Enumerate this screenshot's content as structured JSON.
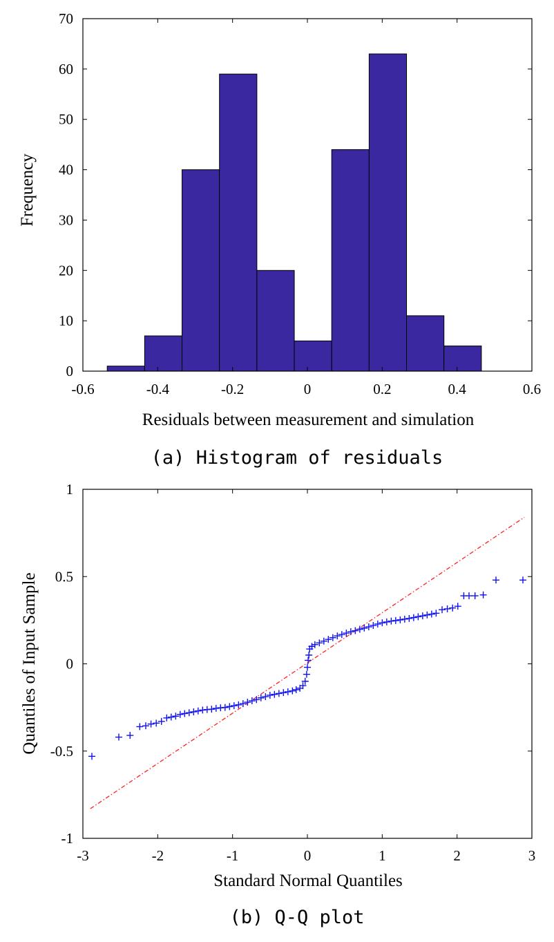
{
  "chart_data": [
    {
      "type": "bar",
      "caption": "(a) Histogram of residuals",
      "xlabel": "Residuals between measurement and simulation",
      "ylabel": "Frequency",
      "xlim": [
        -0.6,
        0.6
      ],
      "ylim": [
        0,
        70
      ],
      "xticks": [
        -0.6,
        -0.4,
        -0.2,
        0,
        0.2,
        0.4,
        0.6
      ],
      "yticks": [
        0,
        10,
        20,
        30,
        40,
        50,
        60,
        70
      ],
      "bin_edges": [
        -0.535,
        -0.435,
        -0.335,
        -0.235,
        -0.135,
        -0.035,
        0.065,
        0.165,
        0.265,
        0.365,
        0.465
      ],
      "values": [
        1,
        7,
        40,
        59,
        20,
        6,
        44,
        63,
        11,
        5
      ],
      "bar_color": "#3A28A0",
      "grid": false
    },
    {
      "type": "scatter",
      "caption": "(b) Q-Q plot",
      "xlabel": "Standard Normal Quantiles",
      "ylabel": "Quantiles of Input Sample",
      "xlim": [
        -3,
        3
      ],
      "ylim": [
        -1,
        1
      ],
      "xticks": [
        -3,
        -2,
        -1,
        0,
        1,
        2,
        3
      ],
      "yticks": [
        -1,
        -0.5,
        0,
        0.5,
        1
      ],
      "marker_color": "#1010F0",
      "line_color": "#FF2020",
      "reference_line": [
        [
          -2.9,
          -0.83
        ],
        [
          2.9,
          0.84
        ]
      ],
      "points": [
        [
          -2.88,
          -0.53
        ],
        [
          -2.52,
          -0.42
        ],
        [
          -2.37,
          -0.41
        ],
        [
          -2.24,
          -0.36
        ],
        [
          -2.16,
          -0.355
        ],
        [
          -2.09,
          -0.345
        ],
        [
          -2.02,
          -0.34
        ],
        [
          -1.95,
          -0.33
        ],
        [
          -1.88,
          -0.31
        ],
        [
          -1.82,
          -0.305
        ],
        [
          -1.76,
          -0.3
        ],
        [
          -1.7,
          -0.29
        ],
        [
          -1.64,
          -0.285
        ],
        [
          -1.58,
          -0.28
        ],
        [
          -1.52,
          -0.275
        ],
        [
          -1.46,
          -0.27
        ],
        [
          -1.4,
          -0.265
        ],
        [
          -1.34,
          -0.262
        ],
        [
          -1.28,
          -0.26
        ],
        [
          -1.22,
          -0.255
        ],
        [
          -1.16,
          -0.252
        ],
        [
          -1.1,
          -0.25
        ],
        [
          -1.04,
          -0.245
        ],
        [
          -0.98,
          -0.24
        ],
        [
          -0.92,
          -0.235
        ],
        [
          -0.86,
          -0.228
        ],
        [
          -0.8,
          -0.22
        ],
        [
          -0.74,
          -0.212
        ],
        [
          -0.68,
          -0.205
        ],
        [
          -0.62,
          -0.195
        ],
        [
          -0.56,
          -0.188
        ],
        [
          -0.5,
          -0.18
        ],
        [
          -0.44,
          -0.175
        ],
        [
          -0.38,
          -0.17
        ],
        [
          -0.32,
          -0.165
        ],
        [
          -0.26,
          -0.16
        ],
        [
          -0.2,
          -0.155
        ],
        [
          -0.15,
          -0.148
        ],
        [
          -0.1,
          -0.14
        ],
        [
          -0.06,
          -0.125
        ],
        [
          -0.03,
          -0.1
        ],
        [
          -0.01,
          -0.06
        ],
        [
          0.0,
          -0.02
        ],
        [
          0.01,
          0.02
        ],
        [
          0.02,
          0.05
        ],
        [
          0.03,
          0.085
        ],
        [
          0.06,
          0.1
        ],
        [
          0.1,
          0.11
        ],
        [
          0.16,
          0.12
        ],
        [
          0.22,
          0.13
        ],
        [
          0.28,
          0.14
        ],
        [
          0.34,
          0.15
        ],
        [
          0.4,
          0.16
        ],
        [
          0.46,
          0.168
        ],
        [
          0.52,
          0.176
        ],
        [
          0.58,
          0.184
        ],
        [
          0.64,
          0.19
        ],
        [
          0.7,
          0.198
        ],
        [
          0.76,
          0.205
        ],
        [
          0.82,
          0.212
        ],
        [
          0.88,
          0.22
        ],
        [
          0.94,
          0.228
        ],
        [
          1.0,
          0.235
        ],
        [
          1.06,
          0.24
        ],
        [
          1.12,
          0.245
        ],
        [
          1.18,
          0.248
        ],
        [
          1.24,
          0.252
        ],
        [
          1.3,
          0.256
        ],
        [
          1.36,
          0.26
        ],
        [
          1.42,
          0.265
        ],
        [
          1.48,
          0.27
        ],
        [
          1.54,
          0.275
        ],
        [
          1.6,
          0.28
        ],
        [
          1.66,
          0.285
        ],
        [
          1.72,
          0.29
        ],
        [
          1.8,
          0.31
        ],
        [
          1.87,
          0.315
        ],
        [
          1.94,
          0.32
        ],
        [
          2.01,
          0.33
        ],
        [
          2.09,
          0.39
        ],
        [
          2.16,
          0.39
        ],
        [
          2.24,
          0.39
        ],
        [
          2.35,
          0.395
        ],
        [
          2.52,
          0.48
        ],
        [
          2.88,
          0.48
        ]
      ],
      "grid": false
    }
  ]
}
